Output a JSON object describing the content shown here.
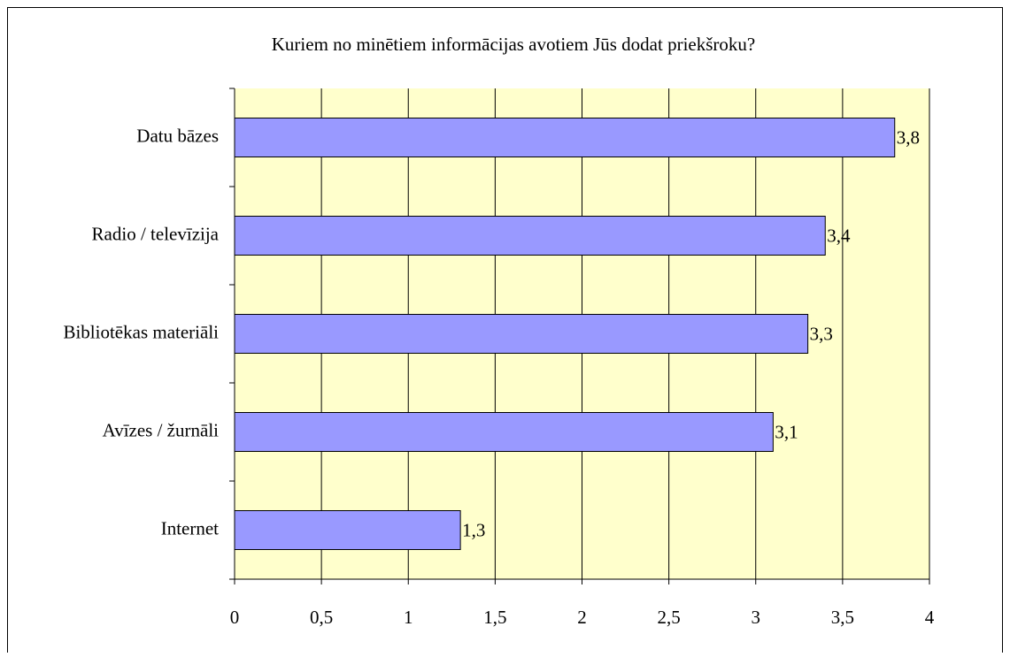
{
  "chart_data": {
    "type": "bar",
    "orientation": "horizontal",
    "title": "Kuriem no minētiem informācijas avotiem Jūs dodat priekšroku?",
    "categories": [
      "Datu bāzes",
      "Radio / televīzija",
      "Bibliotēkas materiāli",
      "Avīzes / žurnāli",
      "Internet"
    ],
    "values": [
      3.8,
      3.4,
      3.3,
      3.1,
      1.3
    ],
    "value_labels": [
      "3,8",
      "3,4",
      "3,3",
      "3,1",
      "1,3"
    ],
    "color": "#9999ff",
    "xlim": [
      0,
      4
    ],
    "xticks": [
      0,
      {
        "value": 0.5,
        "label": "0,5"
      },
      1,
      {
        "value": 1.5,
        "label": "1,5"
      },
      2,
      {
        "value": 2.5,
        "label": "2,5"
      },
      3,
      {
        "value": 3.5,
        "label": "3,5"
      },
      4
    ],
    "grid": true
  }
}
